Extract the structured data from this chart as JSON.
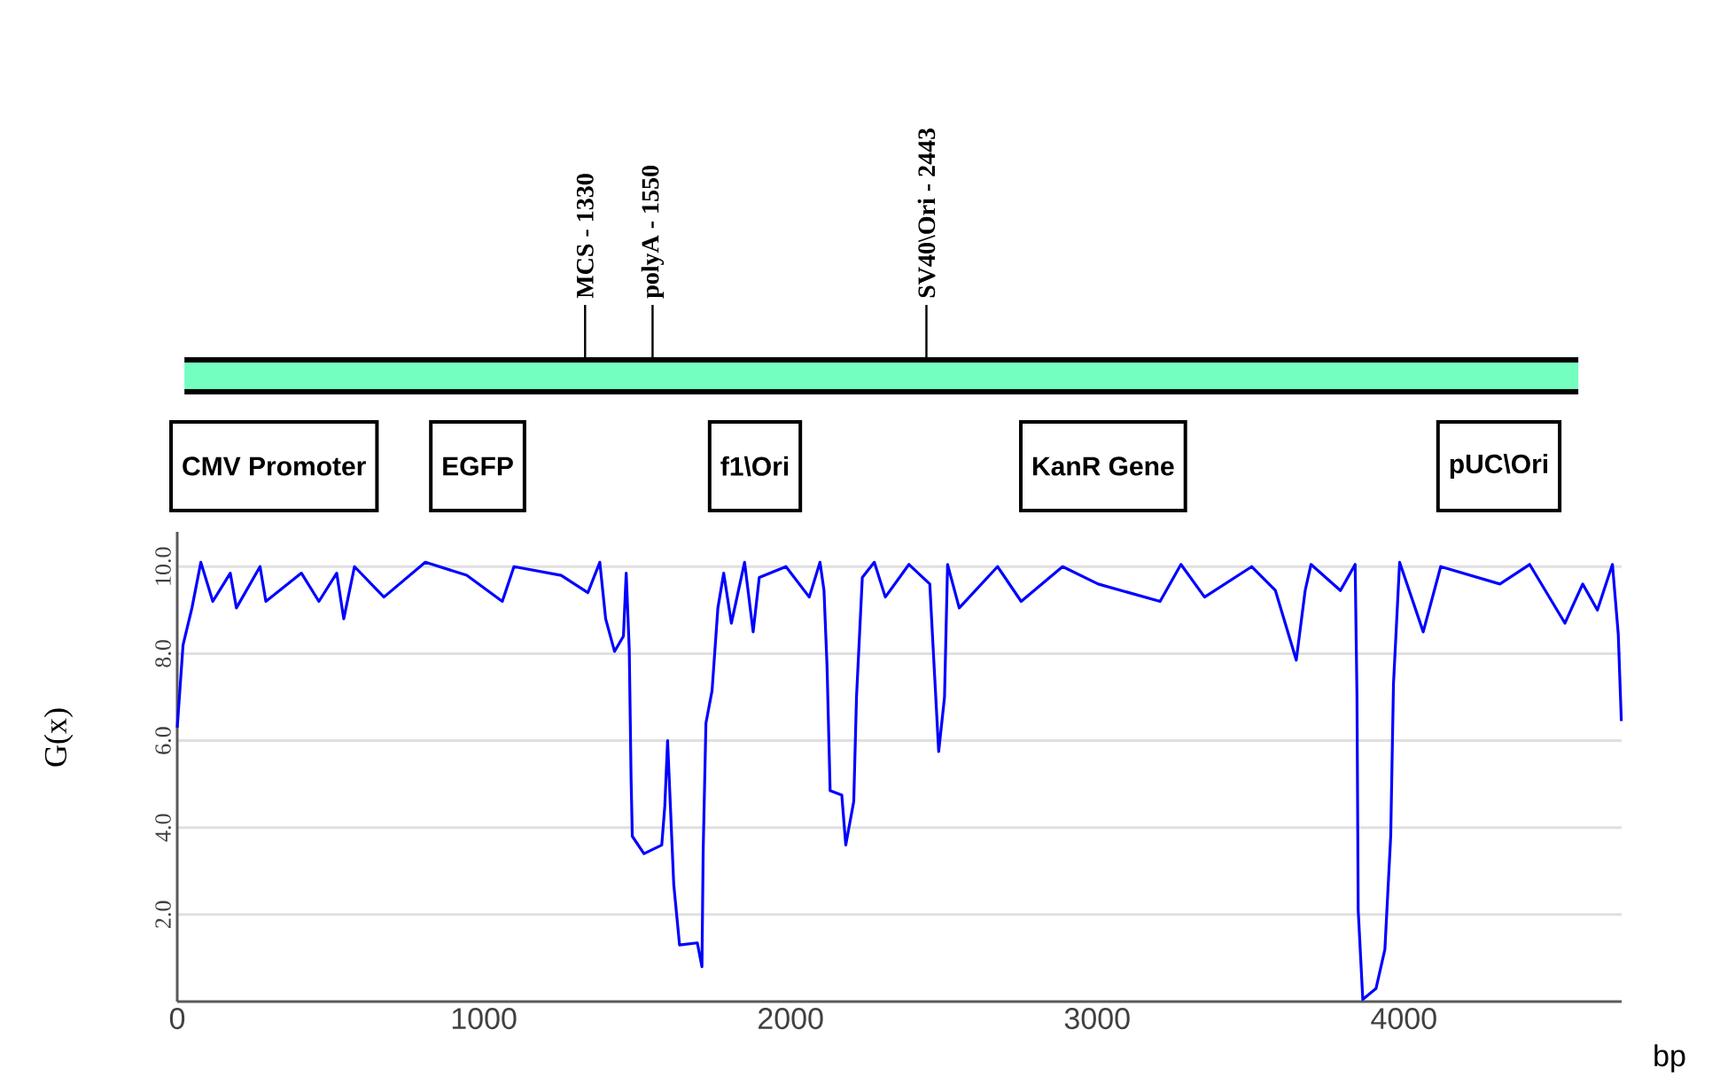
{
  "chart_data": {
    "type": "line",
    "xlabel": "bp",
    "ylabel": "G(x)",
    "xlim": [
      0,
      4710
    ],
    "ylim": [
      0,
      10.8
    ],
    "xticks": [
      0,
      1000,
      2000,
      3000,
      4000
    ],
    "yticks": [
      {
        "value": 2,
        "label": "2.0"
      },
      {
        "value": 4,
        "label": "4.0"
      },
      {
        "value": 6,
        "label": "6.0"
      },
      {
        "value": 8,
        "label": "8.0"
      },
      {
        "value": 10,
        "label": "10.0"
      }
    ],
    "grid": "y",
    "series": [
      {
        "color": "#0000ff",
        "x": [
          0,
          19,
          48,
          77,
          116,
          173,
          193,
          270,
          289,
          405,
          462,
          520,
          543,
          578,
          674,
          809,
          944,
          1060,
          1098,
          1252,
          1339,
          1378,
          1397,
          1426,
          1455,
          1464,
          1474,
          1480,
          1484,
          1522,
          1580,
          1590,
          1599,
          1619,
          1638,
          1696,
          1711,
          1715,
          1724,
          1744,
          1763,
          1782,
          1807,
          1850,
          1878,
          1898,
          1985,
          2061,
          2096,
          2109,
          2119,
          2129,
          2167,
          2180,
          2206,
          2215,
          2234,
          2273,
          2309,
          2386,
          2454,
          2464,
          2483,
          2502,
          2512,
          2550,
          2675,
          2752,
          2887,
          3003,
          3205,
          3273,
          3350,
          3504,
          3581,
          3649,
          3678,
          3697,
          3793,
          3841,
          3847,
          3851,
          3866,
          3909,
          3938,
          3957,
          3966,
          3986,
          4063,
          4120,
          4313,
          4410,
          4525,
          4583,
          4631,
          4680,
          4699,
          4709
        ],
        "values": [
          6.3,
          8.2,
          9.05,
          10.1,
          9.2,
          9.85,
          9.05,
          10.0,
          9.2,
          9.85,
          9.2,
          9.85,
          8.8,
          10.0,
          9.3,
          10.1,
          9.8,
          9.2,
          10.0,
          9.8,
          9.4,
          10.1,
          8.8,
          8.05,
          8.4,
          9.85,
          8.1,
          5.1,
          3.8,
          3.4,
          3.6,
          4.5,
          6.0,
          2.7,
          1.3,
          1.35,
          0.8,
          3.45,
          6.4,
          7.15,
          9.05,
          9.85,
          8.7,
          10.1,
          8.5,
          9.75,
          10.0,
          9.3,
          10.1,
          9.45,
          7.7,
          4.85,
          4.75,
          3.6,
          4.6,
          7.0,
          9.75,
          10.1,
          9.3,
          10.05,
          9.6,
          8.25,
          5.75,
          7.0,
          10.05,
          9.05,
          10.0,
          9.2,
          10.0,
          9.6,
          9.2,
          10.05,
          9.3,
          10.0,
          9.45,
          7.85,
          9.45,
          10.05,
          9.45,
          10.05,
          7.0,
          2.1,
          0.05,
          0.3,
          1.2,
          3.8,
          7.3,
          10.1,
          8.5,
          10.0,
          9.6,
          10.05,
          8.7,
          9.6,
          9.0,
          10.05,
          8.45,
          6.45
        ]
      }
    ],
    "ref_lines": [
      {
        "axis": "x",
        "value": 1330,
        "label": "MCS - 1330"
      },
      {
        "axis": "x",
        "value": 1550,
        "label": "polyA - 1550"
      },
      {
        "axis": "x",
        "value": 2443,
        "label": "SV40\\Ori - 2443"
      }
    ],
    "annotations": [
      "CMV Promoter",
      "EGFP",
      "f1\\Ori",
      "KanR Gene",
      "pUC\\Ori"
    ]
  }
}
